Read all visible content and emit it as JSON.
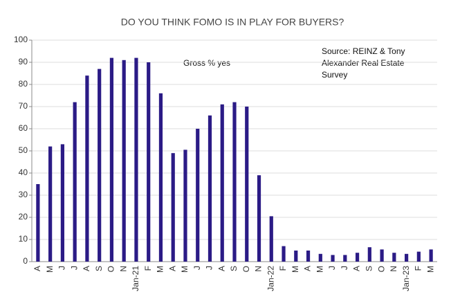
{
  "chart_data": {
    "type": "bar",
    "title": "DO YOU THINK FOMO IS IN PLAY FOR BUYERS?",
    "annotation": "Gross % yes",
    "source": [
      "Source: REINZ & Tony",
      "Alexander Real Estate",
      "Survey"
    ],
    "categories": [
      "A",
      "M",
      "J",
      "J",
      "A",
      "S",
      "O",
      "N",
      "Jan-21",
      "F",
      "M",
      "A",
      "M",
      "J",
      "J",
      "A",
      "S",
      "O",
      "N",
      "Jan-22",
      "F",
      "M",
      "A",
      "M",
      "J",
      "J",
      "A",
      "S",
      "O",
      "N",
      "Jan-23",
      "F",
      "M"
    ],
    "values": [
      35,
      52,
      53,
      72,
      84,
      87,
      92,
      91,
      92,
      90,
      76,
      49,
      50.5,
      60,
      66,
      71,
      72,
      70,
      39,
      20.5,
      7,
      5,
      5,
      3.5,
      3,
      3,
      4,
      6.5,
      5.5,
      4,
      3.5,
      4.5,
      5.5
    ],
    "color": "#2b1b86",
    "ylim": [
      0,
      100
    ],
    "yticks": [
      0,
      10,
      20,
      30,
      40,
      50,
      60,
      70,
      80,
      90,
      100
    ],
    "grid": true
  }
}
